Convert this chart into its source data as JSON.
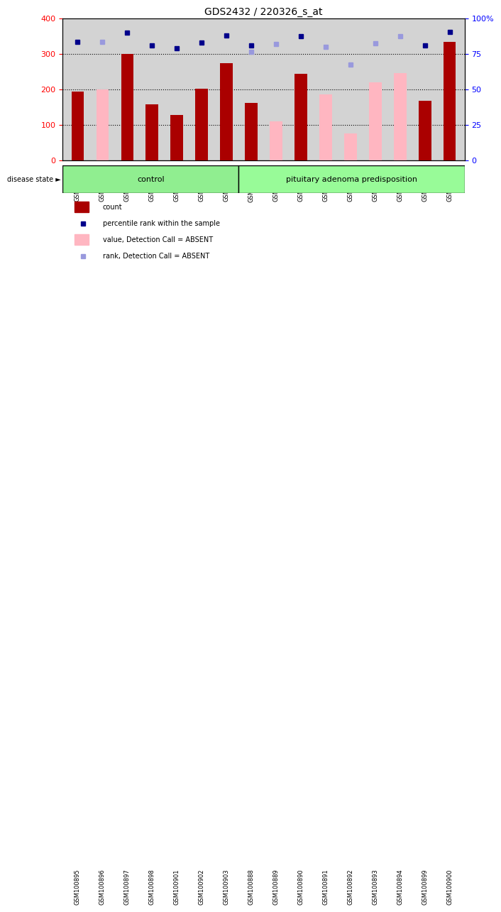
{
  "title": "GDS2432 / 220326_s_at",
  "samples": [
    "GSM100895",
    "GSM100896",
    "GSM100897",
    "GSM100898",
    "GSM100901",
    "GSM100902",
    "GSM100903",
    "GSM100888",
    "GSM100889",
    "GSM100890",
    "GSM100891",
    "GSM100892",
    "GSM100893",
    "GSM100894",
    "GSM100899",
    "GSM100900"
  ],
  "count_values": [
    193,
    null,
    300,
    157,
    128,
    202,
    273,
    161,
    null,
    244,
    null,
    null,
    null,
    null,
    167,
    333
  ],
  "absent_value_values": [
    null,
    200,
    null,
    null,
    null,
    null,
    null,
    null,
    110,
    null,
    185,
    75,
    220,
    245,
    null,
    null
  ],
  "rank_dark_values": [
    333,
    null,
    360,
    323,
    315,
    332,
    352,
    323,
    null,
    350,
    null,
    null,
    null,
    null,
    323,
    362
  ],
  "rank_absent_values": [
    null,
    333,
    null,
    null,
    null,
    null,
    null,
    305,
    328,
    null,
    320,
    270,
    330,
    350,
    null,
    null
  ],
  "control_group": [
    "GSM100895",
    "GSM100896",
    "GSM100897",
    "GSM100898",
    "GSM100901",
    "GSM100902",
    "GSM100903"
  ],
  "disease_group": [
    "GSM100888",
    "GSM100889",
    "GSM100890",
    "GSM100891",
    "GSM100892",
    "GSM100893",
    "GSM100894",
    "GSM100899",
    "GSM100900"
  ],
  "ylim_left": [
    0,
    400
  ],
  "ylim_right": [
    0,
    100
  ],
  "yticks_left": [
    0,
    100,
    200,
    300,
    400
  ],
  "yticks_right": [
    0,
    25,
    50,
    75,
    100
  ],
  "bar_color_dark_red": "#AA0000",
  "bar_color_pink": "#FFB6C1",
  "dot_color_dark_blue": "#00008B",
  "dot_color_light_blue": "#9999DD",
  "grid_color": "#000000",
  "bg_color": "#D3D3D3",
  "control_bg": "#90EE90",
  "disease_bg": "#98FB98",
  "disease_state_label": "disease state",
  "control_label": "control",
  "disease_label": "pituitary adenoma predisposition",
  "legend_items": [
    "count",
    "percentile rank within the sample",
    "value, Detection Call = ABSENT",
    "rank, Detection Call = ABSENT"
  ]
}
